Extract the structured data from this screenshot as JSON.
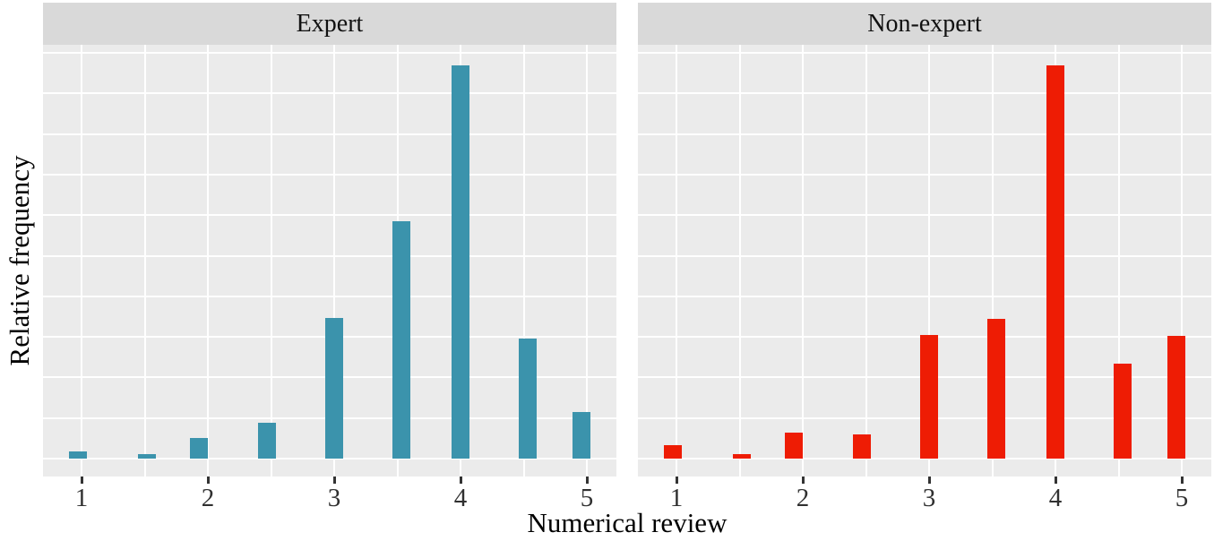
{
  "figure": {
    "x_axis_title": "Numerical review",
    "y_axis_title": "Relative frequency"
  },
  "chart_data": {
    "type": "bar",
    "subtype": "faceted-histogram",
    "xlabel": "Numerical review",
    "ylabel": "Relative frequency",
    "x_ticks": [
      "1",
      "2",
      "3",
      "4",
      "5"
    ],
    "x_tick_values": [
      1,
      2,
      3,
      4,
      5
    ],
    "xlim": [
      0.7,
      5.24
    ],
    "ylim": [
      0,
      0.42
    ],
    "y_tick_labels_shown": false,
    "grid": "white gridlines on gray panel; vertical every 0.5 x-units, 11 horizontal lines",
    "legend_position": "none",
    "categories": [
      1,
      1.5,
      2,
      2.5,
      3,
      3.5,
      4,
      4.5,
      5
    ],
    "bar_render_positions": [
      0.97,
      1.52,
      1.93,
      2.47,
      3.0,
      3.53,
      4.0,
      4.53,
      4.96
    ],
    "facets": [
      {
        "label": "Expert",
        "color": "#3b93ac",
        "values": [
          0.007,
          0.004,
          0.02,
          0.035,
          0.139,
          0.234,
          0.388,
          0.118,
          0.046
        ]
      },
      {
        "label": "Non-expert",
        "color": "#ee1c04",
        "values": [
          0.013,
          0.004,
          0.026,
          0.024,
          0.122,
          0.138,
          0.388,
          0.094,
          0.121
        ]
      }
    ]
  },
  "style": {
    "panel_background": "#ebebeb",
    "strip_background": "#d9d9d9",
    "gridline_color": "#ffffff",
    "tick_color": "#333333",
    "expert_bar_color": "#3b93ac",
    "nonexpert_bar_color": "#ee1c04"
  }
}
